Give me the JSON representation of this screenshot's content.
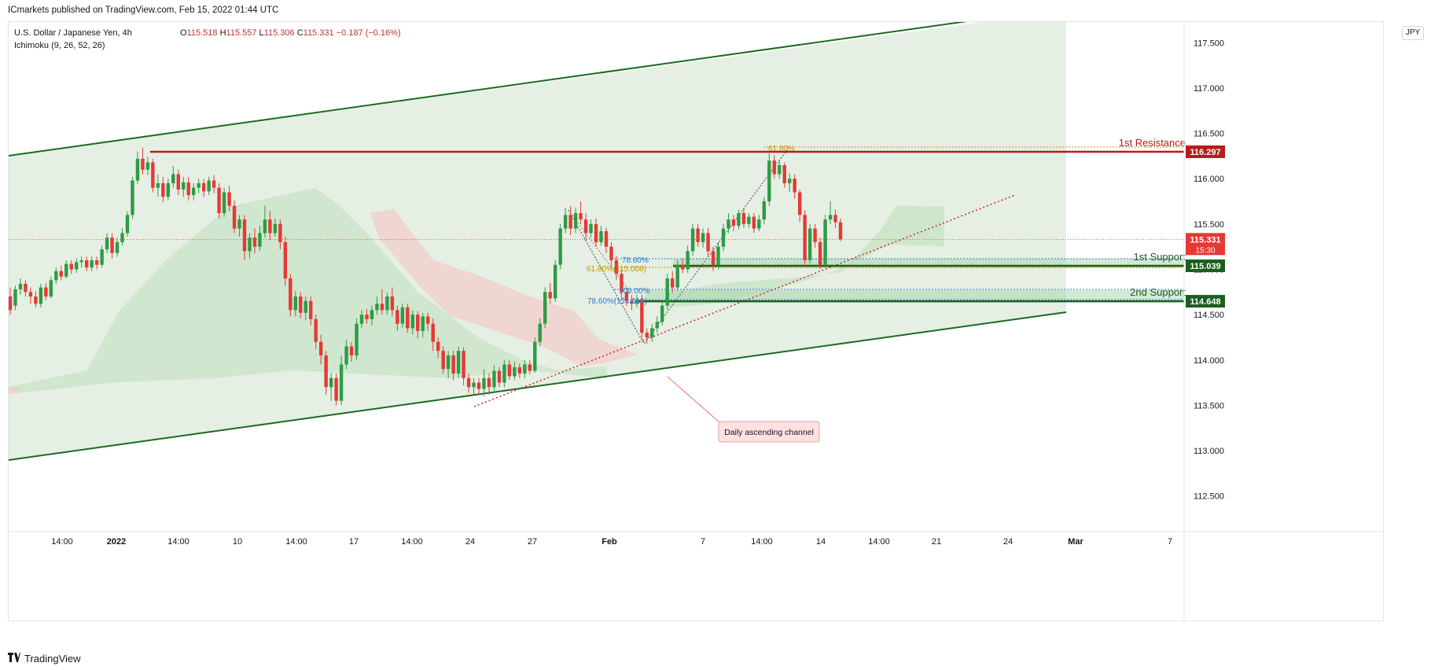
{
  "header": {
    "publisher_line": "ICmarkets published on TradingView.com, Feb 15, 2022 01:44 UTC"
  },
  "legend": {
    "symbol": "U.S. Dollar / Japanese Yen, 4h",
    "o_label": "O",
    "o": "115.518",
    "h_label": "H",
    "h": "115.557",
    "l_label": "L",
    "l": "115.306",
    "c_label": "C",
    "c": "115.331",
    "change": "−0.187 (−0.16%)",
    "indicator": "Ichimoku (9, 26, 52, 26)"
  },
  "currency": "JPY",
  "footer": {
    "brand": "TradingView",
    "logo": "tv-logo-icon"
  },
  "colors": {
    "up": "#26a69a",
    "up_candle": "#2e9b45",
    "down": "#e53935",
    "resistance": "#b71c1c",
    "support": "#1b5e20",
    "channel": "#1b6b1e",
    "channel_fill": "#dce9d9",
    "fib_blue": "#2962ff",
    "fib_orange": "#c99500"
  },
  "chart_data": {
    "type": "candlestick",
    "symbol": "USDJPY",
    "timeframe": "4h",
    "ylim": [
      112.15,
      117.75
    ],
    "y_ticks": [
      "117.500",
      "117.000",
      "116.500",
      "116.000",
      "115.500",
      "115.000",
      "114.500",
      "114.000",
      "113.500",
      "113.000",
      "112.500"
    ],
    "x_ticks": [
      "14:00",
      "2022",
      "14:00",
      "10",
      "14:00",
      "17",
      "14:00",
      "24",
      "27",
      "Feb",
      "7",
      "14:00",
      "14",
      "14:00",
      "21",
      "24",
      "Mar",
      "7"
    ],
    "levels": [
      {
        "name": "1st Resistance",
        "price": "116.297",
        "color": "#b71c1c"
      },
      {
        "name": "1st Support",
        "price": "115.039",
        "color": "#1b5e20"
      },
      {
        "name": "2nd Support",
        "price": "114.648",
        "color": "#1b5e20"
      }
    ],
    "last_price": {
      "price": "115.331",
      "countdown": "15:30"
    },
    "annotations": {
      "channel_label": "Daily ascending channel",
      "fib_top": "61.80%",
      "fib_1_a": "78.60%",
      "fib_1_b": "61.80%(115.008)",
      "fib_2_a": "100.00%",
      "fib_2_b": "78.60%(114.618)"
    },
    "candles": [
      [
        114.7,
        114.55,
        114.8,
        114.5
      ],
      [
        114.6,
        114.78,
        114.82,
        114.55
      ],
      [
        114.78,
        114.84,
        114.9,
        114.72
      ],
      [
        114.84,
        114.75,
        114.88,
        114.7
      ],
      [
        114.75,
        114.7,
        114.8,
        114.62
      ],
      [
        114.7,
        114.62,
        114.76,
        114.58
      ],
      [
        114.62,
        114.8,
        114.84,
        114.58
      ],
      [
        114.8,
        114.7,
        114.85,
        114.66
      ],
      [
        114.7,
        114.88,
        114.92,
        114.68
      ],
      [
        114.88,
        114.98,
        115.02,
        114.84
      ],
      [
        114.98,
        114.92,
        115.04,
        114.88
      ],
      [
        114.92,
        115.06,
        115.1,
        114.9
      ],
      [
        115.06,
        115.0,
        115.1,
        114.95
      ],
      [
        115.0,
        115.08,
        115.12,
        114.96
      ],
      [
        115.08,
        115.1,
        115.14,
        115.02
      ],
      [
        115.1,
        115.02,
        115.14,
        114.98
      ],
      [
        115.02,
        115.1,
        115.14,
        114.98
      ],
      [
        115.1,
        115.05,
        115.14,
        115.0
      ],
      [
        115.05,
        115.22,
        115.26,
        115.02
      ],
      [
        115.22,
        115.35,
        115.4,
        115.18
      ],
      [
        115.35,
        115.18,
        115.4,
        115.12
      ],
      [
        115.18,
        115.3,
        115.35,
        115.14
      ],
      [
        115.3,
        115.4,
        115.45,
        115.26
      ],
      [
        115.4,
        115.6,
        115.64,
        115.36
      ],
      [
        115.6,
        115.98,
        116.02,
        115.56
      ],
      [
        115.98,
        116.22,
        116.3,
        115.94
      ],
      [
        116.22,
        116.1,
        116.34,
        116.05
      ],
      [
        116.1,
        116.18,
        116.24,
        116.04
      ],
      [
        116.18,
        115.9,
        116.22,
        115.85
      ],
      [
        115.9,
        115.95,
        116.05,
        115.8
      ],
      [
        115.95,
        115.8,
        116.02,
        115.74
      ],
      [
        115.8,
        115.95,
        116.0,
        115.76
      ],
      [
        115.95,
        116.05,
        116.14,
        115.9
      ],
      [
        116.05,
        115.88,
        116.1,
        115.82
      ],
      [
        115.88,
        115.96,
        116.02,
        115.8
      ],
      [
        115.96,
        115.82,
        116.02,
        115.76
      ],
      [
        115.82,
        115.9,
        115.95,
        115.76
      ],
      [
        115.9,
        115.95,
        116.0,
        115.84
      ],
      [
        115.95,
        115.86,
        116.0,
        115.8
      ],
      [
        115.86,
        115.98,
        116.02,
        115.82
      ],
      [
        115.98,
        115.9,
        116.04,
        115.84
      ],
      [
        115.9,
        115.62,
        115.95,
        115.56
      ],
      [
        115.62,
        115.85,
        115.9,
        115.58
      ],
      [
        115.85,
        115.7,
        115.92,
        115.64
      ],
      [
        115.7,
        115.45,
        115.76,
        115.4
      ],
      [
        115.45,
        115.55,
        115.6,
        115.36
      ],
      [
        115.55,
        115.2,
        115.6,
        115.1
      ],
      [
        115.2,
        115.35,
        115.4,
        115.12
      ],
      [
        115.35,
        115.25,
        115.45,
        115.18
      ],
      [
        115.25,
        115.4,
        115.48,
        115.2
      ],
      [
        115.4,
        115.55,
        115.7,
        115.35
      ],
      [
        115.55,
        115.4,
        115.64,
        115.32
      ],
      [
        115.4,
        115.5,
        115.56,
        115.36
      ],
      [
        115.5,
        115.3,
        115.55,
        115.22
      ],
      [
        115.3,
        114.9,
        115.36,
        114.82
      ],
      [
        114.9,
        114.55,
        114.95,
        114.48
      ],
      [
        114.55,
        114.7,
        114.76,
        114.48
      ],
      [
        114.7,
        114.52,
        114.75,
        114.46
      ],
      [
        114.52,
        114.65,
        114.7,
        114.44
      ],
      [
        114.65,
        114.45,
        114.7,
        114.38
      ],
      [
        114.45,
        114.2,
        114.5,
        114.12
      ],
      [
        114.2,
        114.05,
        114.28,
        113.95
      ],
      [
        114.05,
        113.7,
        114.1,
        113.62
      ],
      [
        113.7,
        113.8,
        113.86,
        113.55
      ],
      [
        113.8,
        113.55,
        113.85,
        113.5
      ],
      [
        113.55,
        113.95,
        114.05,
        113.5
      ],
      [
        113.95,
        114.15,
        114.22,
        113.9
      ],
      [
        114.15,
        114.05,
        114.2,
        113.98
      ],
      [
        114.05,
        114.4,
        114.46,
        114.0
      ],
      [
        114.4,
        114.5,
        114.55,
        114.35
      ],
      [
        114.5,
        114.45,
        114.56,
        114.4
      ],
      [
        114.45,
        114.55,
        114.6,
        114.38
      ],
      [
        114.55,
        114.62,
        114.7,
        114.5
      ],
      [
        114.62,
        114.55,
        114.78,
        114.5
      ],
      [
        114.55,
        114.7,
        114.74,
        114.5
      ],
      [
        114.7,
        114.55,
        114.8,
        114.48
      ],
      [
        114.55,
        114.4,
        114.6,
        114.32
      ],
      [
        114.4,
        114.58,
        114.62,
        114.35
      ],
      [
        114.58,
        114.35,
        114.62,
        114.3
      ],
      [
        114.35,
        114.5,
        114.55,
        114.28
      ],
      [
        114.5,
        114.32,
        114.54,
        114.24
      ],
      [
        114.32,
        114.48,
        114.52,
        114.25
      ],
      [
        114.48,
        114.4,
        114.52,
        114.32
      ],
      [
        114.4,
        114.2,
        114.46,
        114.1
      ],
      [
        114.2,
        114.1,
        114.25,
        114.02
      ],
      [
        114.1,
        113.9,
        114.15,
        113.85
      ],
      [
        113.9,
        114.05,
        114.1,
        113.8
      ],
      [
        114.05,
        113.85,
        114.1,
        113.78
      ],
      [
        113.85,
        114.1,
        114.15,
        113.8
      ],
      [
        114.1,
        113.8,
        114.14,
        113.72
      ],
      [
        113.8,
        113.7,
        113.85,
        113.64
      ],
      [
        113.7,
        113.75,
        113.8,
        113.62
      ],
      [
        113.75,
        113.68,
        113.8,
        113.62
      ],
      [
        113.68,
        113.8,
        113.9,
        113.6
      ],
      [
        113.8,
        113.7,
        113.85,
        113.62
      ],
      [
        113.7,
        113.88,
        113.94,
        113.66
      ],
      [
        113.88,
        113.75,
        113.92,
        113.7
      ],
      [
        113.75,
        113.95,
        114.0,
        113.7
      ],
      [
        113.95,
        113.82,
        114.0,
        113.78
      ],
      [
        113.82,
        113.92,
        113.98,
        113.78
      ],
      [
        113.92,
        113.85,
        113.96,
        113.8
      ],
      [
        113.85,
        113.95,
        114.0,
        113.8
      ],
      [
        113.95,
        113.88,
        114.0,
        113.84
      ],
      [
        113.88,
        114.2,
        114.25,
        113.86
      ],
      [
        114.2,
        114.4,
        114.46,
        114.15
      ],
      [
        114.4,
        114.75,
        114.8,
        114.35
      ],
      [
        114.75,
        114.68,
        114.85,
        114.62
      ],
      [
        114.68,
        115.05,
        115.1,
        114.64
      ],
      [
        115.05,
        115.45,
        115.5,
        115.0
      ],
      [
        115.45,
        115.6,
        115.68,
        115.4
      ],
      [
        115.6,
        115.45,
        115.7,
        115.38
      ],
      [
        115.45,
        115.62,
        115.68,
        115.4
      ],
      [
        115.62,
        115.55,
        115.75,
        115.5
      ],
      [
        115.55,
        115.4,
        115.62,
        115.32
      ],
      [
        115.4,
        115.5,
        115.55,
        115.35
      ],
      [
        115.5,
        115.3,
        115.56,
        115.25
      ],
      [
        115.3,
        115.42,
        115.48,
        115.26
      ],
      [
        115.42,
        115.25,
        115.46,
        115.18
      ],
      [
        115.25,
        115.1,
        115.3,
        115.02
      ],
      [
        115.1,
        114.95,
        115.15,
        114.88
      ],
      [
        114.95,
        114.75,
        115.0,
        114.68
      ],
      [
        114.75,
        114.65,
        114.8,
        114.6
      ],
      [
        114.65,
        114.62,
        114.72,
        114.55
      ],
      [
        114.62,
        114.66,
        114.72,
        114.58
      ],
      [
        114.66,
        114.3,
        114.72,
        114.22
      ],
      [
        114.3,
        114.25,
        114.35,
        114.18
      ],
      [
        114.25,
        114.35,
        114.4,
        114.2
      ],
      [
        114.35,
        114.42,
        114.48,
        114.3
      ],
      [
        114.42,
        114.6,
        114.66,
        114.38
      ],
      [
        114.6,
        114.9,
        114.95,
        114.55
      ],
      [
        114.9,
        114.8,
        114.98,
        114.74
      ],
      [
        114.8,
        115.05,
        115.1,
        114.76
      ],
      [
        115.05,
        115.0,
        115.12,
        114.96
      ],
      [
        115.0,
        115.2,
        115.26,
        114.96
      ],
      [
        115.2,
        115.45,
        115.5,
        115.15
      ],
      [
        115.45,
        115.3,
        115.5,
        115.25
      ],
      [
        115.3,
        115.4,
        115.45,
        115.24
      ],
      [
        115.4,
        115.2,
        115.46,
        115.14
      ],
      [
        115.2,
        115.05,
        115.25,
        114.98
      ],
      [
        115.05,
        115.25,
        115.3,
        115.0
      ],
      [
        115.25,
        115.45,
        115.5,
        115.2
      ],
      [
        115.45,
        115.55,
        115.62,
        115.4
      ],
      [
        115.55,
        115.48,
        115.6,
        115.42
      ],
      [
        115.48,
        115.62,
        115.66,
        115.44
      ],
      [
        115.62,
        115.5,
        115.68,
        115.46
      ],
      [
        115.5,
        115.58,
        115.62,
        115.46
      ],
      [
        115.58,
        115.45,
        115.62,
        115.4
      ],
      [
        115.45,
        115.55,
        115.6,
        115.42
      ],
      [
        115.55,
        115.75,
        115.8,
        115.5
      ],
      [
        115.75,
        116.2,
        116.28,
        115.7
      ],
      [
        116.2,
        116.05,
        116.26,
        116.0
      ],
      [
        116.05,
        116.15,
        116.2,
        116.0
      ],
      [
        116.15,
        115.95,
        116.18,
        115.9
      ],
      [
        115.95,
        116.0,
        116.06,
        115.85
      ],
      [
        116.0,
        115.85,
        116.05,
        115.78
      ],
      [
        115.85,
        115.6,
        115.88,
        115.52
      ],
      [
        115.6,
        115.1,
        115.65,
        115.04
      ],
      [
        115.1,
        115.45,
        115.5,
        115.06
      ],
      [
        115.45,
        115.3,
        115.5,
        115.24
      ],
      [
        115.3,
        115.05,
        115.35,
        115.0
      ],
      [
        115.05,
        115.55,
        115.6,
        115.02
      ],
      [
        115.55,
        115.6,
        115.75,
        115.5
      ],
      [
        115.6,
        115.52,
        115.66,
        115.46
      ],
      [
        115.52,
        115.33,
        115.56,
        115.31
      ]
    ]
  }
}
